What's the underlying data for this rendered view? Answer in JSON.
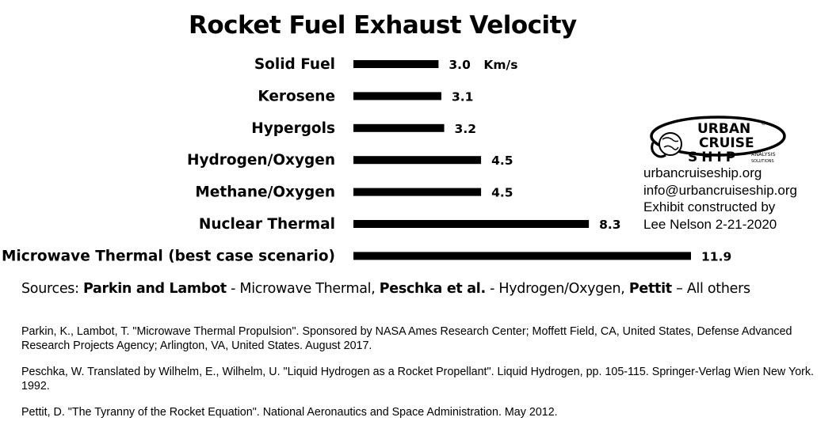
{
  "chart_data": {
    "type": "bar",
    "orientation": "horizontal",
    "title": "Rocket Fuel Exhaust Velocity",
    "categories": [
      "Solid Fuel",
      "Kerosene",
      "Hypergols",
      "Hydrogen/Oxygen",
      "Methane/Oxygen",
      "Nuclear Thermal",
      "Microwave Thermal (best case scenario)"
    ],
    "values": [
      3.0,
      3.1,
      3.2,
      4.5,
      4.5,
      8.3,
      11.9
    ],
    "value_labels": [
      "3.0",
      "3.1",
      "3.2",
      "4.5",
      "4.5",
      "8.3",
      "11.9"
    ],
    "unit": "Km/s",
    "bar_color": "#000000",
    "grid": false,
    "axes_visible": false
  },
  "logo": {
    "word1": "URBAN",
    "word2": "CRUISE",
    "word3": "SHIP",
    "tag1": "ANALYSIS",
    "tag2": "SOLUTIONS",
    "mark": "®"
  },
  "contact": {
    "website": "urbancruiseship.org",
    "email": "info@urbancruiseship.org",
    "credit_line1": "Exhibit constructed by",
    "credit_line2": "Lee Nelson 2-21-2020"
  },
  "sources": {
    "label": "Sources: ",
    "author1": "Parkin and Lambot",
    "desc1": " - Microwave Thermal, ",
    "author2": "Peschka et al.",
    "desc2": " - Hydrogen/Oxygen, ",
    "author3": "Pettit",
    "desc3": " – All others"
  },
  "references": [
    "Parkin, K., Lambot, T. \"Microwave Thermal Propulsion\". Sponsored by NASA Ames Research Center; Moffett Field, CA, United States, Defense Advanced Research Projects Agency; Arlington, VA, United States. August 2017.",
    "Peschka, W. Translated by Wilhelm, E., Wilhelm, U. \"Liquid Hydrogen as a Rocket Propellant\". Liquid Hydrogen, pp. 105-115. Springer-Verlag Wien New York. 1992.",
    "Pettit, D. \"The Tyranny of the Rocket Equation\". National Aeronautics and Space Administration. May 2012."
  ]
}
